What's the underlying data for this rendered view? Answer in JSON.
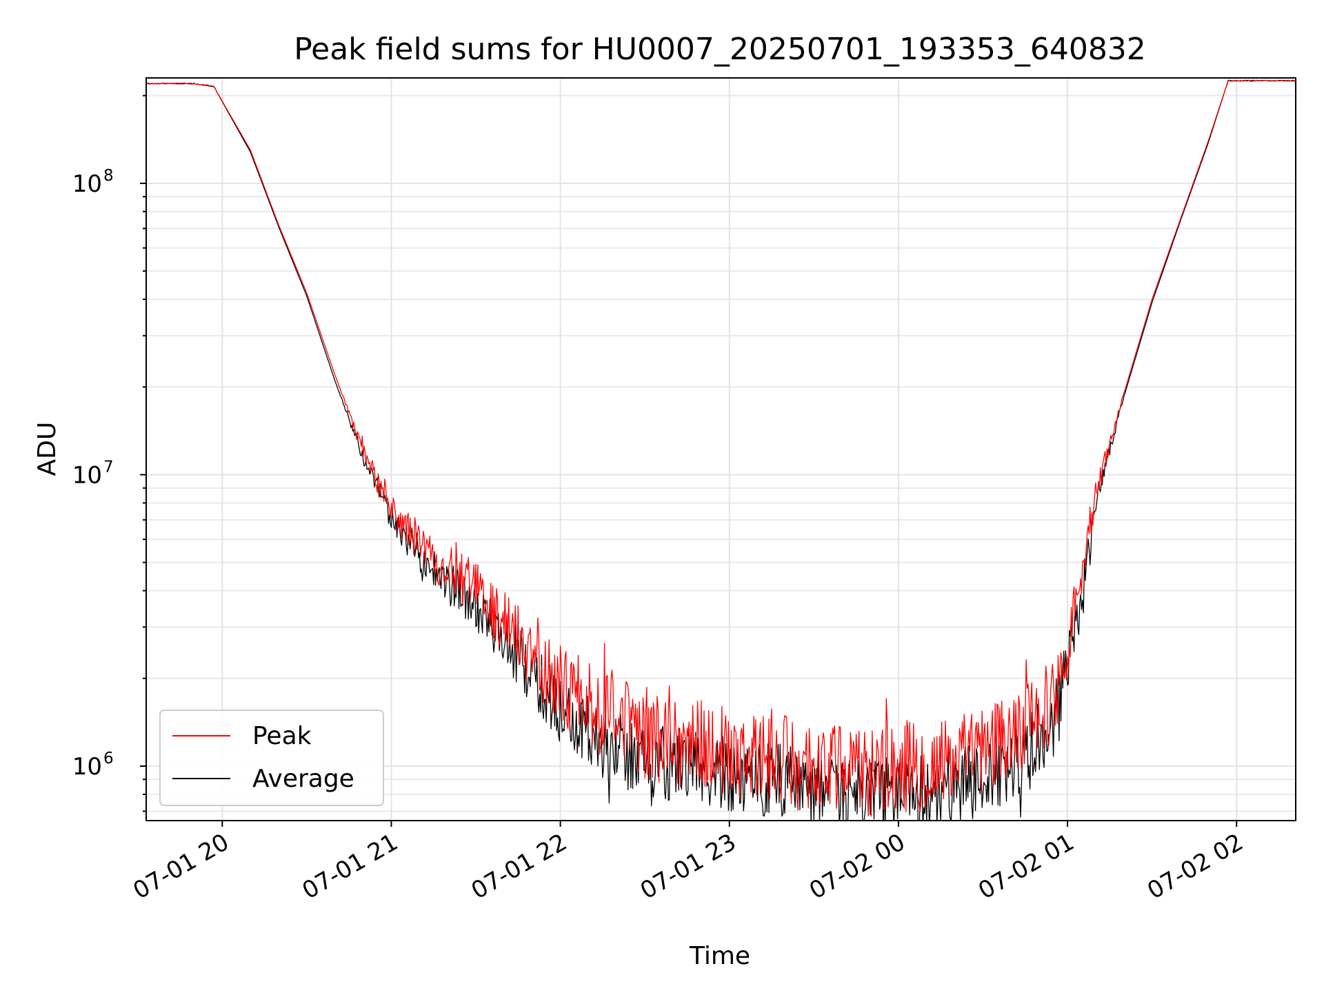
{
  "chart_data": {
    "type": "line",
    "title": "Peak field sums for HU0007_20250701_193353_640832",
    "xlabel": "Time",
    "ylabel": "ADU",
    "yscale": "log",
    "xlim": [
      "2025-07-01 19:33",
      "2025-07-02 02:21"
    ],
    "ylim": [
      650000,
      230000000
    ],
    "grid": true,
    "legend_position": "lower-left",
    "x_ticks": [
      {
        "t": "2025-07-01 20:00",
        "label": "07-01 20"
      },
      {
        "t": "2025-07-01 21:00",
        "label": "07-01 21"
      },
      {
        "t": "2025-07-01 22:00",
        "label": "07-01 22"
      },
      {
        "t": "2025-07-01 23:00",
        "label": "07-01 23"
      },
      {
        "t": "2025-07-02 00:00",
        "label": "07-02 00"
      },
      {
        "t": "2025-07-02 01:00",
        "label": "07-02 01"
      },
      {
        "t": "2025-07-02 02:00",
        "label": "07-02 02"
      }
    ],
    "y_ticks": [
      {
        "value": 1000000,
        "base": "10",
        "exp": "6"
      },
      {
        "value": 10000000,
        "base": "10",
        "exp": "7"
      },
      {
        "value": 100000000,
        "base": "10",
        "exp": "8"
      }
    ],
    "series": [
      {
        "name": "Peak",
        "color": "#ff0000",
        "x": [
          "2025-07-01 19:33",
          "2025-07-01 19:50",
          "2025-07-01 19:57",
          "2025-07-01 20:10",
          "2025-07-01 20:20",
          "2025-07-01 20:30",
          "2025-07-01 20:40",
          "2025-07-01 20:50",
          "2025-07-01 21:00",
          "2025-07-01 21:15",
          "2025-07-01 21:30",
          "2025-07-01 21:45",
          "2025-07-01 22:00",
          "2025-07-01 22:15",
          "2025-07-01 22:30",
          "2025-07-01 22:45",
          "2025-07-01 23:00",
          "2025-07-01 23:15",
          "2025-07-01 23:30",
          "2025-07-01 23:45",
          "2025-07-02 00:00",
          "2025-07-02 00:15",
          "2025-07-02 00:30",
          "2025-07-02 00:45",
          "2025-07-02 00:55",
          "2025-07-02 01:00",
          "2025-07-02 01:05",
          "2025-07-02 01:10",
          "2025-07-02 01:20",
          "2025-07-02 01:30",
          "2025-07-02 01:40",
          "2025-07-02 01:50",
          "2025-07-02 01:57",
          "2025-07-02 02:21"
        ],
        "values": [
          220000000,
          220000000,
          215000000,
          130000000,
          72000000,
          42000000,
          22000000,
          12000000,
          7500000,
          5200000,
          4000000,
          2800000,
          1900000,
          1500000,
          1300000,
          1200000,
          1150000,
          1050000,
          1000000,
          950000,
          1000000,
          1000000,
          1100000,
          1350000,
          1700000,
          2600000,
          4500000,
          8500000,
          19000000,
          40000000,
          75000000,
          140000000,
          225000000,
          225000000
        ]
      },
      {
        "name": "Average",
        "color": "#000000",
        "x": [
          "2025-07-01 19:33",
          "2025-07-01 19:50",
          "2025-07-01 19:57",
          "2025-07-01 20:10",
          "2025-07-01 20:20",
          "2025-07-01 20:30",
          "2025-07-01 20:40",
          "2025-07-01 20:50",
          "2025-07-01 21:00",
          "2025-07-01 21:15",
          "2025-07-01 21:30",
          "2025-07-01 21:45",
          "2025-07-01 22:00",
          "2025-07-01 22:15",
          "2025-07-01 22:30",
          "2025-07-01 22:45",
          "2025-07-01 23:00",
          "2025-07-01 23:15",
          "2025-07-01 23:30",
          "2025-07-01 23:45",
          "2025-07-02 00:00",
          "2025-07-02 00:15",
          "2025-07-02 00:30",
          "2025-07-02 00:45",
          "2025-07-02 00:55",
          "2025-07-02 01:00",
          "2025-07-02 01:05",
          "2025-07-02 01:10",
          "2025-07-02 01:20",
          "2025-07-02 01:30",
          "2025-07-02 01:40",
          "2025-07-02 01:50",
          "2025-07-02 01:57",
          "2025-07-02 02:21"
        ],
        "values": [
          220000000,
          220000000,
          215000000,
          128000000,
          71000000,
          41000000,
          21000000,
          11500000,
          7000000,
          4700000,
          3500000,
          2400000,
          1550000,
          1200000,
          1050000,
          1000000,
          950000,
          900000,
          850000,
          800000,
          820000,
          830000,
          900000,
          1100000,
          1400000,
          2200000,
          3800000,
          8000000,
          18500000,
          39000000,
          74000000,
          138000000,
          225000000,
          225000000
        ]
      }
    ]
  }
}
